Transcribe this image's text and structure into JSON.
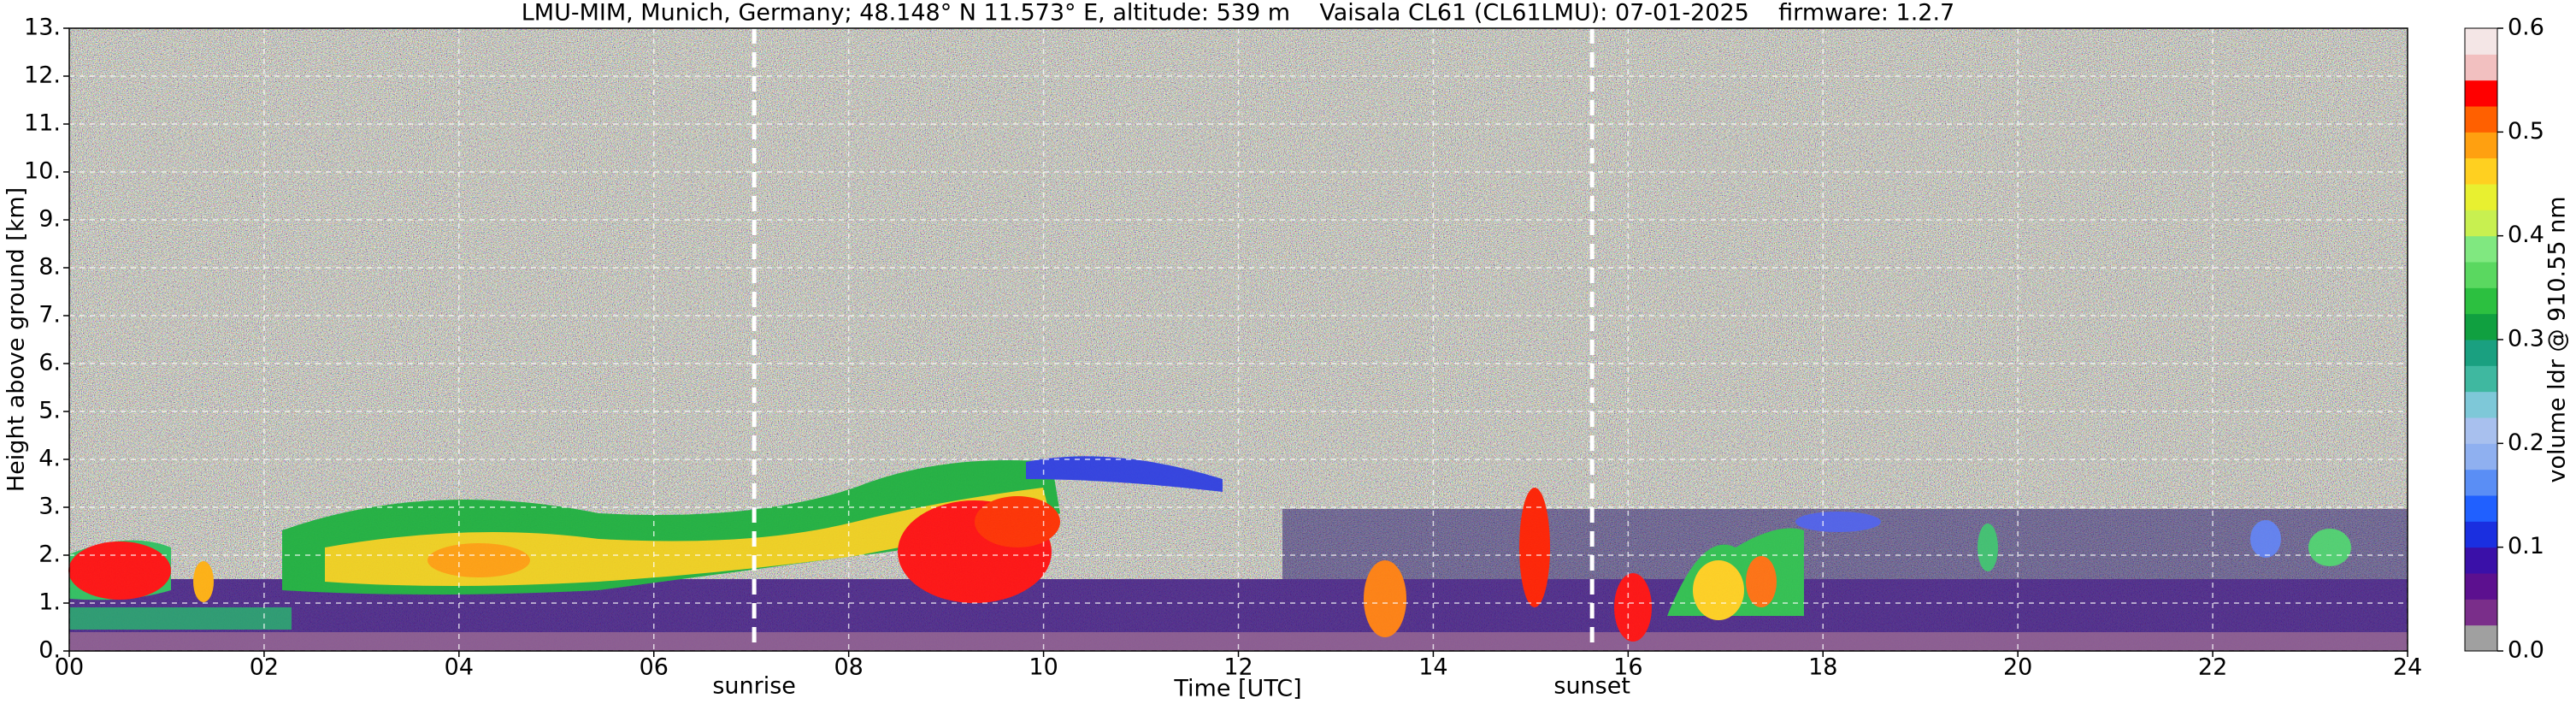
{
  "chart_data": {
    "type": "heatmap",
    "title": "LMU-MIM, Munich, Germany; 48.148° N 11.573° E, altitude: 539 m    Vaisala CL61 (CL61LMU): 07-01-2025    firmware: 1.2.7",
    "x_label": "Time [UTC]",
    "y_label": "Height above ground [km]",
    "xlim": [
      0,
      24
    ],
    "xticks": [
      {
        "value": 0,
        "label": "00"
      },
      {
        "value": 2,
        "label": "02"
      },
      {
        "value": 4,
        "label": "04"
      },
      {
        "value": 6,
        "label": "06"
      },
      {
        "value": 8,
        "label": "08"
      },
      10,
      12,
      14,
      16,
      18,
      20,
      22,
      24
    ],
    "ylim": [
      0,
      13
    ],
    "yticks": [
      {
        "value": 0,
        "label": "0."
      },
      {
        "value": 1,
        "label": "1."
      },
      {
        "value": 2,
        "label": "2."
      },
      {
        "value": 3,
        "label": "3."
      },
      {
        "value": 4,
        "label": "4."
      },
      {
        "value": 5,
        "label": "5."
      },
      {
        "value": 6,
        "label": "6."
      },
      {
        "value": 7,
        "label": "7."
      },
      {
        "value": 8,
        "label": "8."
      },
      {
        "value": 9,
        "label": "9."
      },
      {
        "value": 10,
        "label": "10."
      },
      {
        "value": 11,
        "label": "11."
      },
      {
        "value": 12,
        "label": "12."
      },
      {
        "value": 13,
        "label": "13."
      }
    ],
    "grid": true,
    "annotations": [
      {
        "text": "sunrise",
        "x": 7.03
      },
      {
        "text": "sunset",
        "x": 15.63
      }
    ],
    "colorbar": {
      "label": "volume ldr @ 910.55 nm",
      "lim": [
        0,
        0.6
      ],
      "ticks": [
        {
          "value": 0,
          "label": "0.0"
        },
        0.1,
        0.2,
        0.3,
        0.4,
        0.5,
        0.6
      ],
      "colors": [
        "#a0a0a0",
        "#7a2e8a",
        "#5c108f",
        "#3a10a8",
        "#1a2fe0",
        "#2060ff",
        "#5a8ef5",
        "#8fb0f0",
        "#a8c0ee",
        "#7ec8d8",
        "#3fb8a0",
        "#1aa080",
        "#10a040",
        "#2cc040",
        "#5ad860",
        "#80e880",
        "#c8f050",
        "#e8f030",
        "#ffd020",
        "#ffa010",
        "#ff6000",
        "#ff0000",
        "#f2c0c0",
        "#f4e6e6"
      ]
    }
  }
}
